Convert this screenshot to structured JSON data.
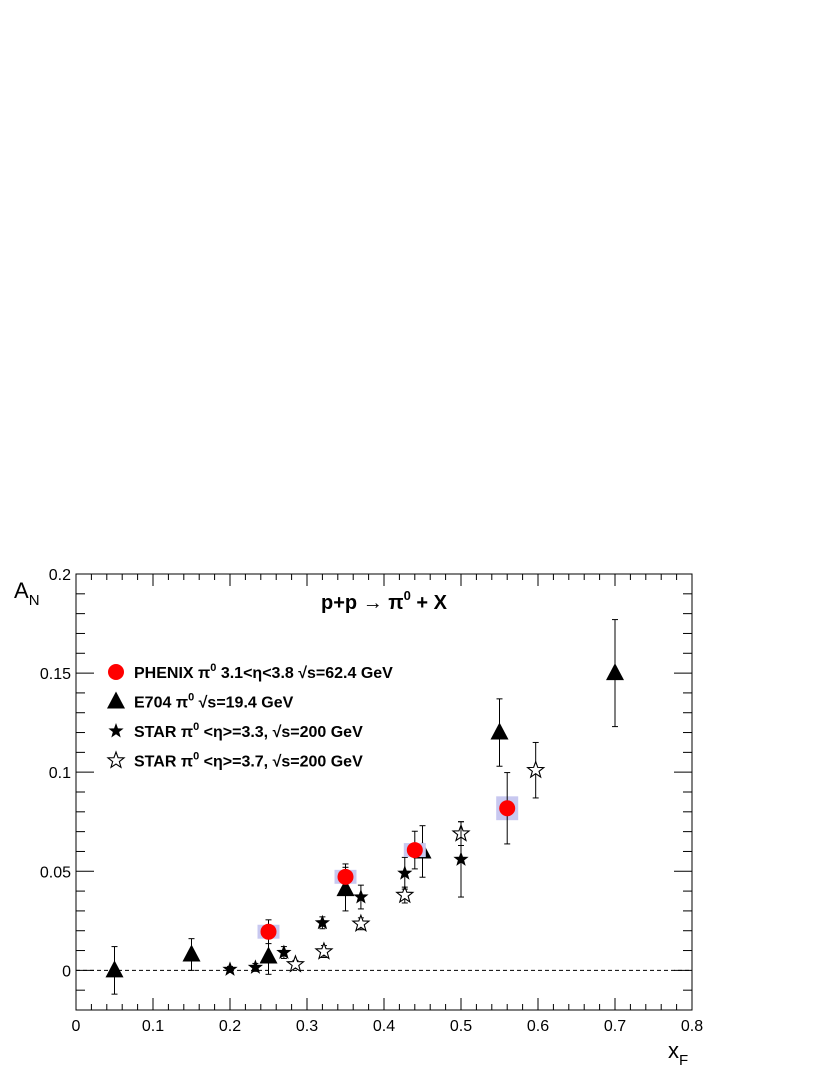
{
  "chart_data": {
    "type": "scatter",
    "title": "p+p → π⁰ + X",
    "xlabel": "x_F",
    "ylabel": "A_N",
    "xlim": [
      0,
      0.8
    ],
    "ylim": [
      -0.02,
      0.2
    ],
    "x_ticks": [
      0,
      0.1,
      0.2,
      0.3,
      0.4,
      0.5,
      0.6,
      0.7,
      0.8
    ],
    "x_tick_labels": [
      "0",
      "0.1",
      "0.2",
      "0.3",
      "0.4",
      "0.5",
      "0.6",
      "0.7",
      "0.8"
    ],
    "y_ticks": [
      0,
      0.05,
      0.1,
      0.15,
      0.2
    ],
    "y_tick_labels": [
      "0",
      "0.05",
      "0.1",
      "0.15",
      "0.2"
    ],
    "zero_line": true,
    "grid": false,
    "legend_position": "top-left",
    "series": [
      {
        "name": "PHENIX π⁰ 3.1<η<3.8 √s=62.4 GeV",
        "marker": "circle",
        "color": "#ff0000",
        "syst_color": "#c8c8f0",
        "points": [
          {
            "x": 0.25,
            "y": 0.0195,
            "err": 0.006,
            "syst": 0.0015
          },
          {
            "x": 0.35,
            "y": 0.0472,
            "err": 0.0065,
            "syst": 0.0015
          },
          {
            "x": 0.44,
            "y": 0.0607,
            "err": 0.0095,
            "syst": 0.0015
          },
          {
            "x": 0.56,
            "y": 0.0818,
            "err": 0.018,
            "syst": 0.004
          }
        ]
      },
      {
        "name": "E704 π⁰ √s=19.4 GeV",
        "marker": "triangle",
        "color": "#000000",
        "points": [
          {
            "x": 0.05,
            "y": 0.0,
            "err": 0.012
          },
          {
            "x": 0.15,
            "y": 0.008,
            "err": 0.008
          },
          {
            "x": 0.25,
            "y": 0.007,
            "err": 0.009
          },
          {
            "x": 0.35,
            "y": 0.041,
            "err": 0.011
          },
          {
            "x": 0.45,
            "y": 0.06,
            "err": 0.013
          },
          {
            "x": 0.55,
            "y": 0.12,
            "err": 0.017
          },
          {
            "x": 0.7,
            "y": 0.15,
            "err": 0.027
          }
        ]
      },
      {
        "name": "STAR π⁰ <η>=3.3, √s=200 GeV",
        "marker": "star-filled",
        "color": "#000000",
        "points": [
          {
            "x": 0.2,
            "y": 0.0005,
            "err": 0.0015
          },
          {
            "x": 0.233,
            "y": 0.0015,
            "err": 0.002
          },
          {
            "x": 0.27,
            "y": 0.009,
            "err": 0.003
          },
          {
            "x": 0.32,
            "y": 0.024,
            "err": 0.003
          },
          {
            "x": 0.37,
            "y": 0.037,
            "err": 0.006
          },
          {
            "x": 0.427,
            "y": 0.049,
            "err": 0.008
          },
          {
            "x": 0.5,
            "y": 0.056,
            "err": 0.019
          }
        ]
      },
      {
        "name": "STAR π⁰ <η>=3.7, √s=200 GeV",
        "marker": "star-open",
        "color": "#000000",
        "points": [
          {
            "x": 0.285,
            "y": 0.003,
            "err": 0.002
          },
          {
            "x": 0.322,
            "y": 0.0095,
            "err": 0.003
          },
          {
            "x": 0.37,
            "y": 0.0235,
            "err": 0.003
          },
          {
            "x": 0.427,
            "y": 0.038,
            "err": 0.004
          },
          {
            "x": 0.5,
            "y": 0.069,
            "err": 0.006
          },
          {
            "x": 0.597,
            "y": 0.101,
            "err": 0.014
          }
        ]
      }
    ]
  }
}
